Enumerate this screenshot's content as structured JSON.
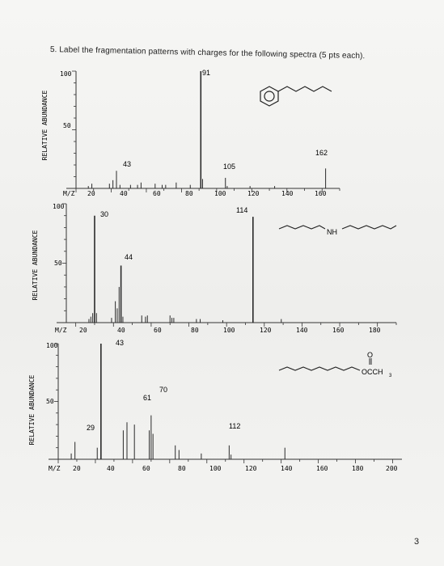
{
  "question": {
    "text": "5.  Label the fragmentation patterns with charges for the following spectra (5 pts each)."
  },
  "page_number": "3",
  "spectra": [
    {
      "ylabel": "RELATIVE ABUNDANCE",
      "y_ticks": [
        "100",
        "50"
      ],
      "x_prefix": "M/Z",
      "x_ticks": [
        "20",
        "40",
        "60",
        "80",
        "100",
        "120",
        "140",
        "160"
      ],
      "peak_labels": [
        "91",
        "43",
        "105",
        "162"
      ],
      "structure_label": ""
    },
    {
      "ylabel": "RELATIVE ABUNDANCE",
      "y_ticks": [
        "100",
        "50"
      ],
      "x_prefix": "M/Z",
      "x_ticks": [
        "20",
        "40",
        "60",
        "80",
        "100",
        "120",
        "140",
        "160",
        "180"
      ],
      "peak_labels": [
        "30",
        "44",
        "114"
      ],
      "structure_label": "NH"
    },
    {
      "ylabel": "RELATIVE ABUNDANCE",
      "y_ticks": [
        "100",
        "50"
      ],
      "x_prefix": "M/Z",
      "x_ticks": [
        "20",
        "40",
        "60",
        "80",
        "100",
        "120",
        "140",
        "160",
        "180",
        "200"
      ],
      "peak_labels": [
        "43",
        "70",
        "61",
        "29",
        "112"
      ],
      "structure_label": "OCCH",
      "structure_sub": "3",
      "structure_o": "O"
    }
  ],
  "chart_data": [
    {
      "type": "bar",
      "ylabel": "RELATIVE ABUNDANCE",
      "xlabel": "M/Z",
      "xlim": [
        20,
        170
      ],
      "ylim": [
        0,
        100
      ],
      "x": [
        27,
        29,
        39,
        41,
        43,
        45,
        51,
        55,
        57,
        65,
        69,
        71,
        77,
        85,
        91,
        92,
        105,
        106,
        119,
        133,
        162
      ],
      "values": [
        2,
        4,
        4,
        7,
        15,
        3,
        3,
        3,
        5,
        4,
        3,
        3,
        5,
        3,
        100,
        8,
        9,
        2,
        2,
        2,
        17
      ]
    },
    {
      "type": "bar",
      "ylabel": "RELATIVE ABUNDANCE",
      "xlabel": "M/Z",
      "xlim": [
        15,
        190
      ],
      "ylim": [
        0,
        100
      ],
      "x": [
        27,
        28,
        29,
        30,
        31,
        39,
        41,
        42,
        43,
        44,
        45,
        55,
        57,
        58,
        70,
        71,
        72,
        84,
        86,
        98,
        114,
        129
      ],
      "values": [
        3,
        5,
        8,
        90,
        8,
        4,
        18,
        12,
        30,
        48,
        5,
        6,
        5,
        6,
        6,
        4,
        4,
        3,
        3,
        2,
        89,
        3
      ]
    },
    {
      "type": "bar",
      "ylabel": "RELATIVE ABUNDANCE",
      "xlabel": "M/Z",
      "xlim": [
        20,
        205
      ],
      "ylim": [
        0,
        100
      ],
      "x": [
        27,
        29,
        41,
        43,
        55,
        57,
        61,
        69,
        70,
        71,
        83,
        85,
        97,
        112,
        113,
        142
      ],
      "values": [
        5,
        15,
        10,
        100,
        25,
        32,
        30,
        25,
        38,
        22,
        12,
        8,
        5,
        12,
        4,
        10
      ]
    }
  ]
}
